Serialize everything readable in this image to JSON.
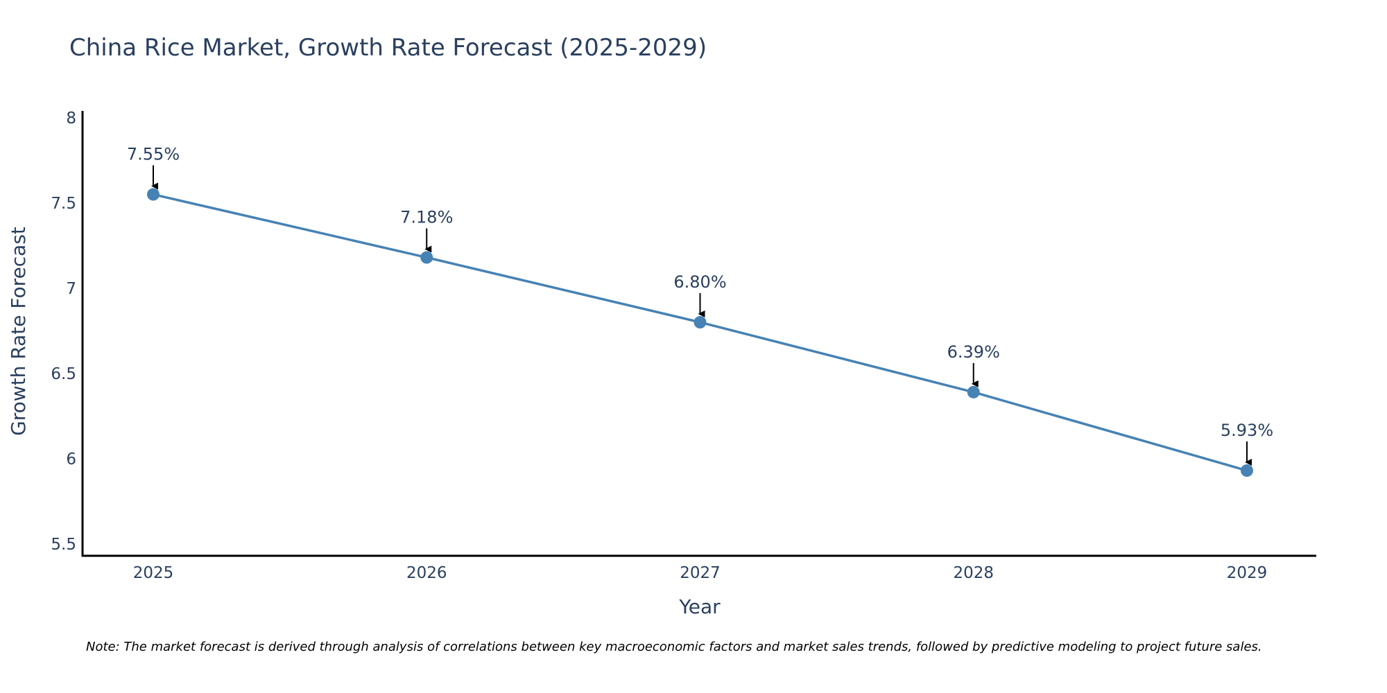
{
  "chart_data": {
    "type": "line",
    "title": "China Rice Market, Growth Rate Forecast (2025-2029)",
    "xlabel": "Year",
    "ylabel": "Growth Rate Forecast",
    "categories": [
      "2025",
      "2026",
      "2027",
      "2028",
      "2029"
    ],
    "series": [
      {
        "name": "Growth Rate Forecast",
        "values": [
          7.55,
          7.18,
          6.8,
          6.39,
          5.93
        ],
        "labels": [
          "7.55%",
          "7.18%",
          "6.80%",
          "6.39%",
          "5.93%"
        ]
      }
    ],
    "ylim": [
      5.43,
      8.04
    ],
    "yticks": [
      5.5,
      6,
      6.5,
      7,
      7.5,
      8
    ],
    "ytick_labels": [
      "5.5",
      "6",
      "6.5",
      "7",
      "7.5",
      "8"
    ],
    "grid": false,
    "legend": "none",
    "note": "Note: The market forecast is derived through analysis of correlations between key macroeconomic factors and market sales trends, followed by predictive modeling to project future sales.",
    "colors": {
      "line": "#4682b4",
      "marker": "#4682b4",
      "text": "#2a3f5f",
      "axis": "#000000",
      "arrow": "#000000"
    }
  }
}
